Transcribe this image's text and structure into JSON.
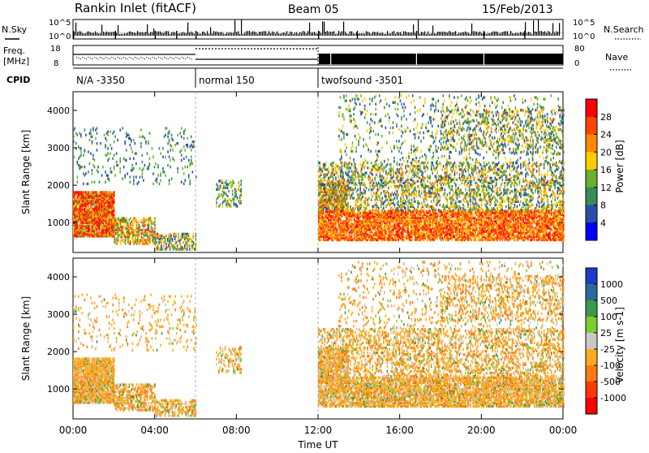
{
  "header": {
    "title": "Rankin Inlet (fitACF)",
    "beam": "Beam 05",
    "date": "15/Feb/2013"
  },
  "status_panels": {
    "nsky_label": "N.Sky",
    "nsky_ticks": [
      "10^5",
      "10^0"
    ],
    "nsearch_label": "N.Search",
    "freq_label_1": "Freq.",
    "freq_label_2": "[MHz]",
    "freq_ticks": [
      "18",
      "8"
    ],
    "nave_ticks": [
      "80",
      "0"
    ],
    "nave_label": "Nave",
    "cpid_label": "CPID",
    "cpid_segments": [
      {
        "label": "N/A -3350",
        "start_h": 0,
        "end_h": 6
      },
      {
        "label": "normal 150",
        "start_h": 6,
        "end_h": 12
      },
      {
        "label": "twofsound -3501",
        "start_h": 12,
        "end_h": 24
      }
    ]
  },
  "chart_data": [
    {
      "type": "heatmap",
      "name": "power",
      "ylabel": "Slant Range [km]",
      "yticks": [
        1000,
        2000,
        3000,
        4000
      ],
      "ylim": [
        200,
        4500
      ],
      "xlim": [
        0,
        24
      ],
      "colorbar": {
        "label": "Power [dB]",
        "ticks": [
          "4",
          "8",
          "12",
          "16",
          "20",
          "24",
          "28"
        ],
        "colors": [
          "#0000ff",
          "#2a4ea8",
          "#3a8a5a",
          "#6ab02a",
          "#ffcc00",
          "#ff8800",
          "#ff4400",
          "#ff0000"
        ]
      }
    },
    {
      "type": "heatmap",
      "name": "velocity",
      "ylabel": "Slant Range [km]",
      "yticks": [
        1000,
        2000,
        3000,
        4000
      ],
      "ylim": [
        200,
        4500
      ],
      "xlim": [
        0,
        24
      ],
      "xlabel": "Time UT",
      "xticks": [
        "00:00",
        "04:00",
        "08:00",
        "12:00",
        "16:00",
        "20:00",
        "00:00"
      ],
      "colorbar": {
        "label": "Velocity [m s-1]",
        "ticks": [
          "1000",
          "500",
          "100",
          "25",
          "-25",
          "-100",
          "-500",
          "-1000"
        ],
        "colors": [
          "#1e3cc8",
          "#2a6aa0",
          "#3a9a4a",
          "#7ccc30",
          "#c8c8c8",
          "#ffaa22",
          "#ff7a10",
          "#ff3a00",
          "#ff0000"
        ]
      }
    }
  ]
}
